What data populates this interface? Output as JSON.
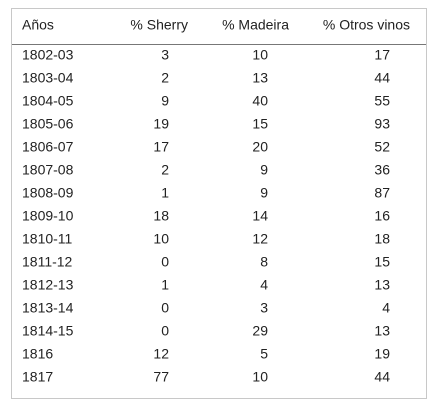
{
  "table": {
    "header": [
      "Años",
      "% Sherry",
      "% Madeira",
      "% Otros vinos"
    ],
    "rows": [
      [
        "1802-03",
        3,
        10,
        17
      ],
      [
        "1803-04",
        2,
        13,
        44
      ],
      [
        "1804-05",
        9,
        40,
        55
      ],
      [
        "1805-06",
        19,
        15,
        93
      ],
      [
        "1806-07",
        17,
        20,
        52
      ],
      [
        "1807-08",
        2,
        9,
        36
      ],
      [
        "1808-09",
        1,
        9,
        87
      ],
      [
        "1809-10",
        18,
        14,
        16
      ],
      [
        "1810-11",
        10,
        12,
        18
      ],
      [
        "1811-12",
        0,
        8,
        15
      ],
      [
        "1812-13",
        1,
        4,
        13
      ],
      [
        "1813-14",
        0,
        3,
        4
      ],
      [
        "1814-15",
        0,
        29,
        13
      ],
      [
        "1816",
        12,
        5,
        19
      ],
      [
        "1817",
        77,
        10,
        44
      ]
    ]
  }
}
